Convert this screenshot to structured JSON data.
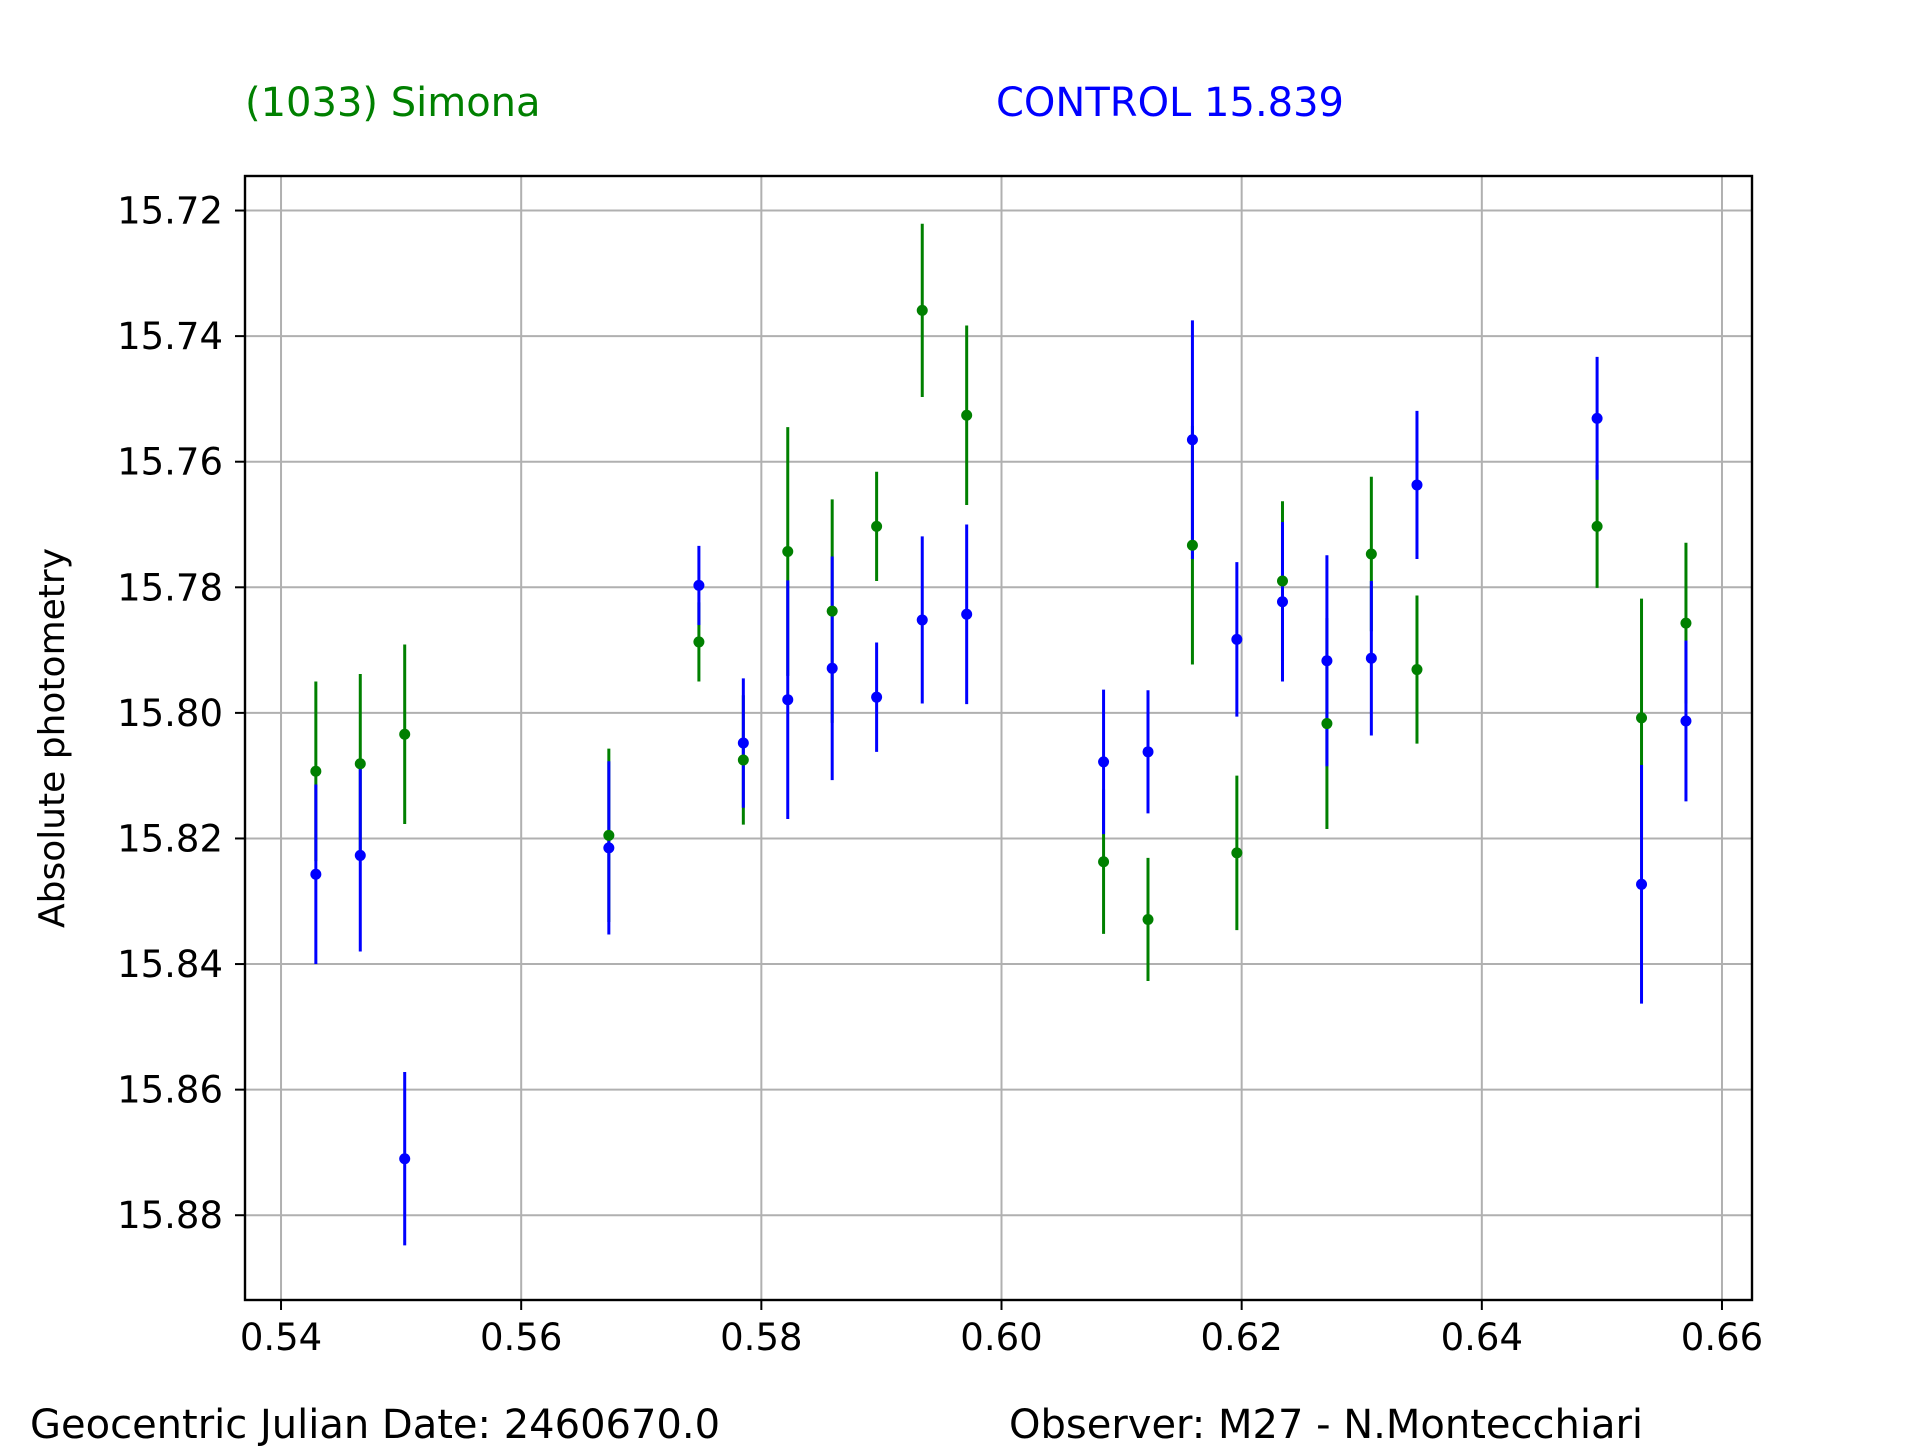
{
  "header": {
    "target_label": "(1033) Simona",
    "control_label": "CONTROL 15.839"
  },
  "footer": {
    "date_label": "Geocentric Julian Date: 2460670.0",
    "observer_label": "Observer: M27 - N.Montecchiari"
  },
  "chart_data": {
    "type": "scatter",
    "ylabel": "Absolute photometry",
    "xlabel": "",
    "xlim": [
      0.537,
      0.6625
    ],
    "ylim": [
      15.8935,
      15.7145
    ],
    "y_inverted": true,
    "grid": true,
    "x_ticks": [
      0.54,
      0.56,
      0.58,
      0.6,
      0.62,
      0.64,
      0.66
    ],
    "x_tick_labels": [
      "0.54",
      "0.56",
      "0.58",
      "0.60",
      "0.62",
      "0.64",
      "0.66"
    ],
    "y_ticks": [
      15.72,
      15.74,
      15.76,
      15.78,
      15.8,
      15.82,
      15.84,
      15.86,
      15.88
    ],
    "y_tick_labels": [
      "15.72",
      "15.74",
      "15.76",
      "15.78",
      "15.80",
      "15.82",
      "15.84",
      "15.86",
      "15.88"
    ],
    "series": [
      {
        "name": "(1033) Simona",
        "color": "#008000",
        "points": [
          {
            "x": 0.5429,
            "y": 15.8093,
            "err": 0.0143
          },
          {
            "x": 0.5466,
            "y": 15.8081,
            "err": 0.0143
          },
          {
            "x": 0.5503,
            "y": 15.8034,
            "err": 0.0143
          },
          {
            "x": 0.5673,
            "y": 15.8195,
            "err": 0.0138
          },
          {
            "x": 0.5748,
            "y": 15.7887,
            "err": 0.0063
          },
          {
            "x": 0.5785,
            "y": 15.8075,
            "err": 0.0103
          },
          {
            "x": 0.5822,
            "y": 15.7743,
            "err": 0.0198
          },
          {
            "x": 0.5859,
            "y": 15.7838,
            "err": 0.0178
          },
          {
            "x": 0.5896,
            "y": 15.7703,
            "err": 0.0087
          },
          {
            "x": 0.5934,
            "y": 15.7359,
            "err": 0.0138
          },
          {
            "x": 0.5971,
            "y": 15.7526,
            "err": 0.0143
          },
          {
            "x": 0.6085,
            "y": 15.8237,
            "err": 0.0115
          },
          {
            "x": 0.6122,
            "y": 15.8329,
            "err": 0.0098
          },
          {
            "x": 0.6159,
            "y": 15.7733,
            "err": 0.019
          },
          {
            "x": 0.6196,
            "y": 15.8223,
            "err": 0.0123
          },
          {
            "x": 0.6234,
            "y": 15.779,
            "err": 0.0127
          },
          {
            "x": 0.6271,
            "y": 15.8017,
            "err": 0.0168
          },
          {
            "x": 0.6308,
            "y": 15.7747,
            "err": 0.0123
          },
          {
            "x": 0.6346,
            "y": 15.7931,
            "err": 0.0118
          },
          {
            "x": 0.6496,
            "y": 15.7703,
            "err": 0.0098
          },
          {
            "x": 0.6533,
            "y": 15.8008,
            "err": 0.019
          },
          {
            "x": 0.657,
            "y": 15.7857,
            "err": 0.0128
          }
        ]
      },
      {
        "name": "CONTROL 15.839",
        "color": "#0000ff",
        "points": [
          {
            "x": 0.5429,
            "y": 15.8257,
            "err": 0.0143
          },
          {
            "x": 0.5466,
            "y": 15.8227,
            "err": 0.0153
          },
          {
            "x": 0.5503,
            "y": 15.871,
            "err": 0.0138
          },
          {
            "x": 0.5673,
            "y": 15.8215,
            "err": 0.0138
          },
          {
            "x": 0.5748,
            "y": 15.7797,
            "err": 0.0063
          },
          {
            "x": 0.5785,
            "y": 15.8048,
            "err": 0.0103
          },
          {
            "x": 0.5822,
            "y": 15.7979,
            "err": 0.019
          },
          {
            "x": 0.5859,
            "y": 15.7929,
            "err": 0.0178
          },
          {
            "x": 0.5896,
            "y": 15.7975,
            "err": 0.0087
          },
          {
            "x": 0.5934,
            "y": 15.7852,
            "err": 0.0133
          },
          {
            "x": 0.5971,
            "y": 15.7843,
            "err": 0.0143
          },
          {
            "x": 0.6085,
            "y": 15.8078,
            "err": 0.0115
          },
          {
            "x": 0.6122,
            "y": 15.8062,
            "err": 0.0098
          },
          {
            "x": 0.6159,
            "y": 15.7565,
            "err": 0.019
          },
          {
            "x": 0.6196,
            "y": 15.7883,
            "err": 0.0123
          },
          {
            "x": 0.6234,
            "y": 15.7823,
            "err": 0.0127
          },
          {
            "x": 0.6271,
            "y": 15.7917,
            "err": 0.0168
          },
          {
            "x": 0.6308,
            "y": 15.7913,
            "err": 0.0123
          },
          {
            "x": 0.6346,
            "y": 15.7637,
            "err": 0.0118
          },
          {
            "x": 0.6496,
            "y": 15.7531,
            "err": 0.0098
          },
          {
            "x": 0.6533,
            "y": 15.8273,
            "err": 0.019
          },
          {
            "x": 0.657,
            "y": 15.8013,
            "err": 0.0128
          }
        ]
      }
    ]
  }
}
